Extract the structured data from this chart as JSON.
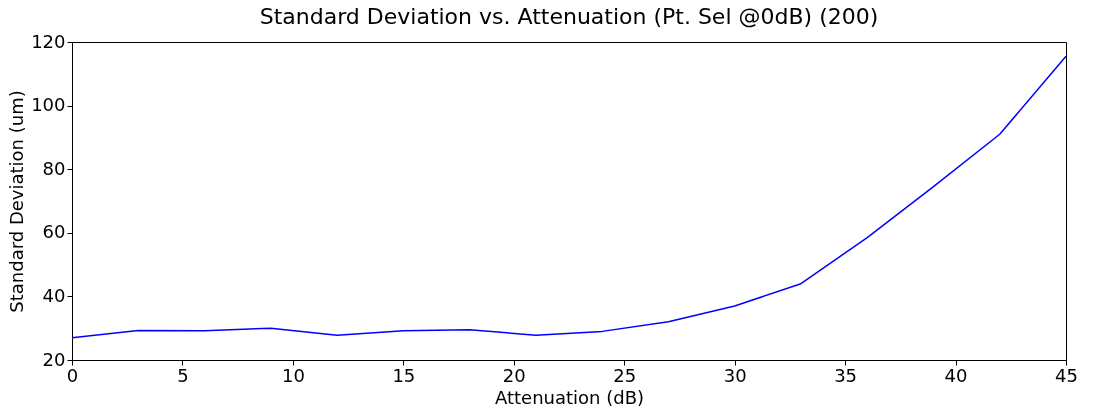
{
  "chart_data": {
    "type": "line",
    "title": "Standard Deviation vs. Attenuation (Pt. Sel @0dB) (200)",
    "xlabel": "Attenuation (dB)",
    "ylabel": "Standard Deviation (um)",
    "x": [
      0,
      3,
      6,
      9,
      12,
      15,
      18,
      21,
      24,
      27,
      30,
      33,
      36,
      39,
      42,
      45
    ],
    "series": [
      {
        "color": "#0000ff",
        "values": [
          27,
          29.3,
          29.2,
          30,
          27.8,
          29.2,
          29.5,
          27.8,
          29,
          32,
          37,
          44,
          58.5,
          74.5,
          91,
          115.5
        ]
      }
    ],
    "xlim": [
      0,
      45
    ],
    "xticks": [
      0,
      5,
      10,
      15,
      20,
      25,
      30,
      35,
      40,
      45
    ],
    "ylim": [
      20,
      120
    ],
    "yticks": [
      20,
      40,
      60,
      80,
      100,
      120
    ],
    "grid": false,
    "marker": "none",
    "line_style": "solid"
  }
}
